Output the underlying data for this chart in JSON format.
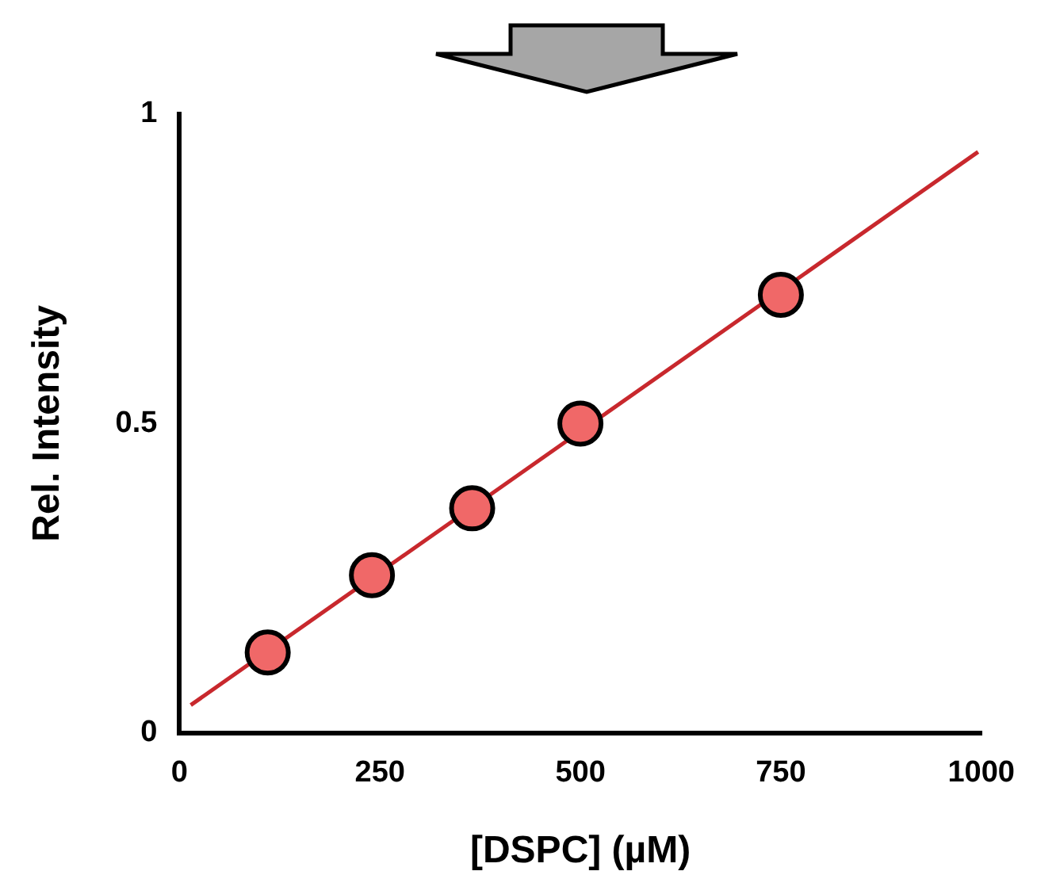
{
  "chart_data": {
    "type": "scatter",
    "xlabel": "[DSPC] (µM)",
    "ylabel": "Rel. Intensity",
    "xlim": [
      0,
      1000
    ],
    "xticks": [
      0,
      250,
      500,
      750,
      1000
    ],
    "ylim": [
      0,
      1
    ],
    "yticks": [
      0,
      0.5,
      1
    ],
    "grid": false,
    "legend": false,
    "series": [
      {
        "type": "line",
        "color": "#c8282d",
        "marker": "none",
        "x": [
          14,
          996
        ],
        "values": [
          0.045,
          0.939
        ]
      },
      {
        "type": "scatter",
        "color": "#f06868",
        "marker": "circle",
        "x": [
          110,
          240,
          365,
          500,
          750
        ],
        "values": [
          0.13,
          0.255,
          0.363,
          0.5,
          0.708
        ]
      }
    ]
  }
}
